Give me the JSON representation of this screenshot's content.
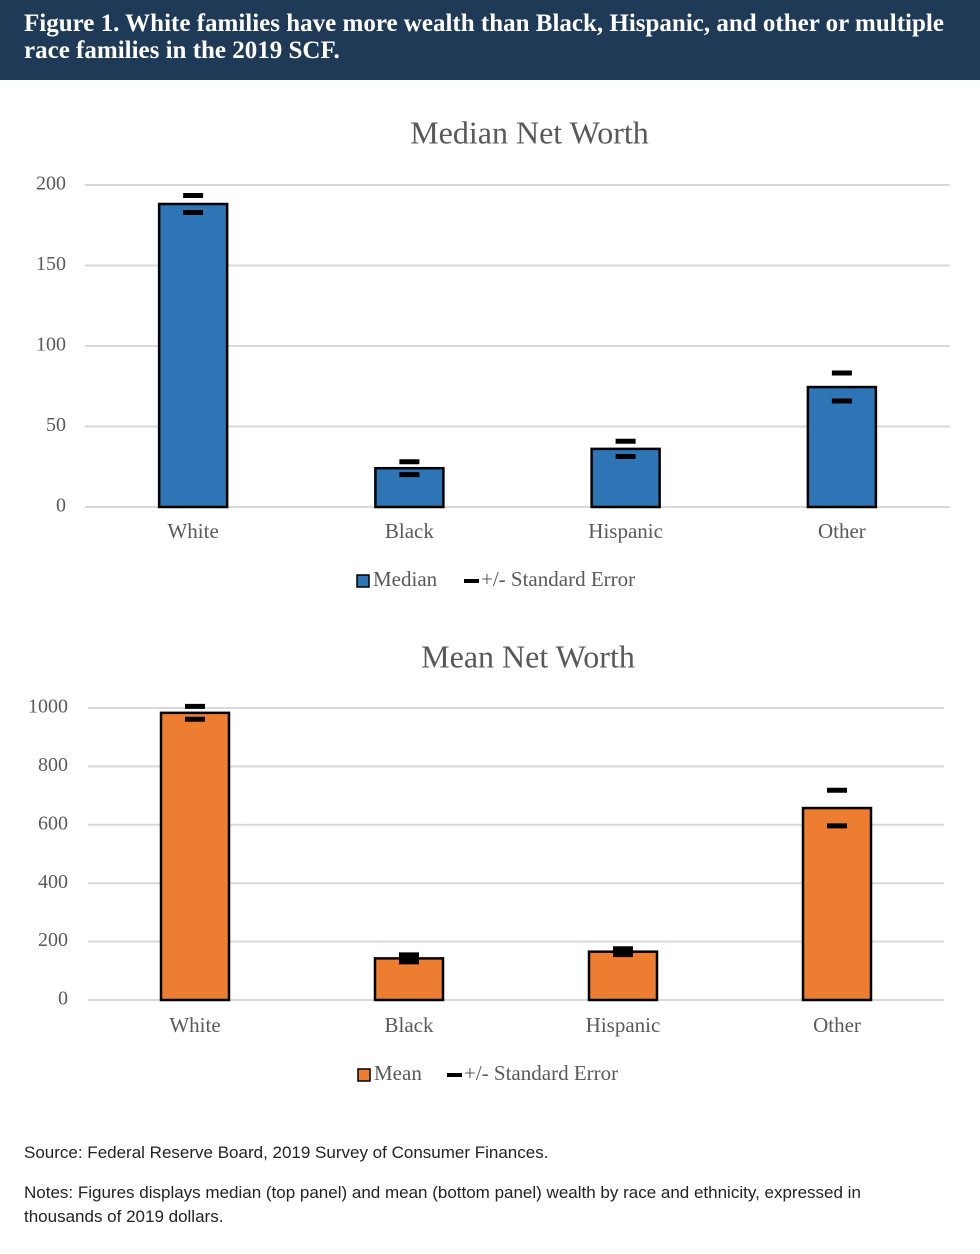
{
  "header": {
    "title": "Figure 1. White families have more wealth than Black, Hispanic, and other or multiple race families in the 2019 SCF."
  },
  "chart_data": [
    {
      "type": "bar",
      "title": "Median Net Worth",
      "categories": [
        "White",
        "Black",
        "Hispanic",
        "Other"
      ],
      "series": [
        {
          "name": "Median",
          "color": "#2e75b6",
          "values": [
            188.2,
            24.1,
            36.1,
            74.5
          ]
        }
      ],
      "error_bars": {
        "name": "+/- Standard Error",
        "color": "#000000",
        "values": [
          5.3,
          4.0,
          4.7,
          8.7
        ]
      },
      "ylim": [
        0,
        200
      ],
      "yticks": [
        0,
        50,
        100,
        150,
        200
      ],
      "grid": true
    },
    {
      "type": "bar",
      "title": "Mean Net Worth",
      "categories": [
        "White",
        "Black",
        "Hispanic",
        "Other"
      ],
      "series": [
        {
          "name": "Mean",
          "color": "#ed7d31",
          "values": [
            983.4,
            142.5,
            165.5,
            657.3
          ]
        }
      ],
      "error_bars": {
        "name": "+/- Standard Error",
        "color": "#000000",
        "values": [
          22,
          12,
          10,
          61
        ]
      },
      "ylim": [
        0,
        1000
      ],
      "yticks": [
        0,
        200,
        400,
        600,
        800,
        1000
      ],
      "grid": true
    }
  ],
  "footer": {
    "source": "Source: Federal Reserve Board, 2019 Survey of Consumer Finances.",
    "notes": "Notes: Figures displays median (top panel) and mean (bottom panel) wealth by race and ethnicity, expressed in thousands of 2019 dollars."
  }
}
